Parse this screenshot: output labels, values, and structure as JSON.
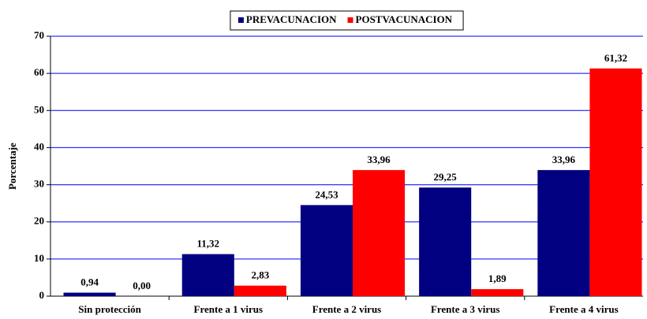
{
  "chart_data": {
    "type": "bar",
    "y_label": "Porcentaje",
    "categories": [
      "Sin protección",
      "Frente a 1 virus",
      "Frente a 2 virus",
      "Frente a 3 virus",
      "Frente a 4 virus"
    ],
    "series": [
      {
        "name": "PREVACUNACION",
        "color": "#000080",
        "values": [
          0.94,
          11.32,
          24.53,
          29.25,
          33.96
        ],
        "value_labels": [
          "0,94",
          "11,32",
          "24,53",
          "29,25",
          "33,96"
        ]
      },
      {
        "name": "POSTVACUNACION",
        "color": "#ff0000",
        "values": [
          0,
          2.83,
          33.96,
          1.89,
          61.32
        ],
        "value_labels": [
          "0,00",
          "2,83",
          "33,96",
          "1,89",
          "61,32"
        ]
      }
    ],
    "ylim": [
      0,
      70
    ],
    "yticks": [
      0,
      10,
      20,
      30,
      40,
      50,
      60,
      70
    ],
    "grid": true,
    "legend": "top"
  }
}
